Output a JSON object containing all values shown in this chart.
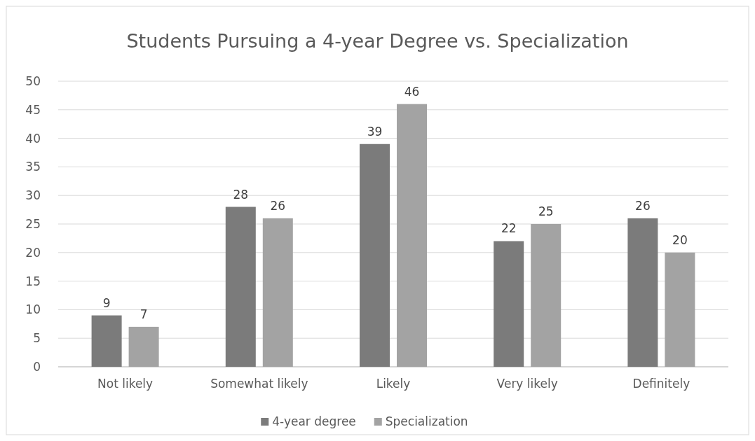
{
  "chart_data": {
    "type": "bar",
    "title": "Students Pursuing a 4-year Degree vs. Specialization",
    "categories": [
      "Not likely",
      "Somewhat likely",
      "Likely",
      "Very likely",
      "Definitely"
    ],
    "series": [
      {
        "name": "4-year degree",
        "color": "#7b7b7b",
        "values": [
          9,
          28,
          39,
          22,
          26
        ]
      },
      {
        "name": "Specialization",
        "color": "#a3a3a3",
        "values": [
          7,
          26,
          46,
          25,
          20
        ]
      }
    ],
    "ylim": [
      0,
      50
    ],
    "yticks": [
      0,
      5,
      10,
      15,
      20,
      25,
      30,
      35,
      40,
      45,
      50
    ],
    "grid": "y",
    "legend": "bottom",
    "data_labels": true
  }
}
